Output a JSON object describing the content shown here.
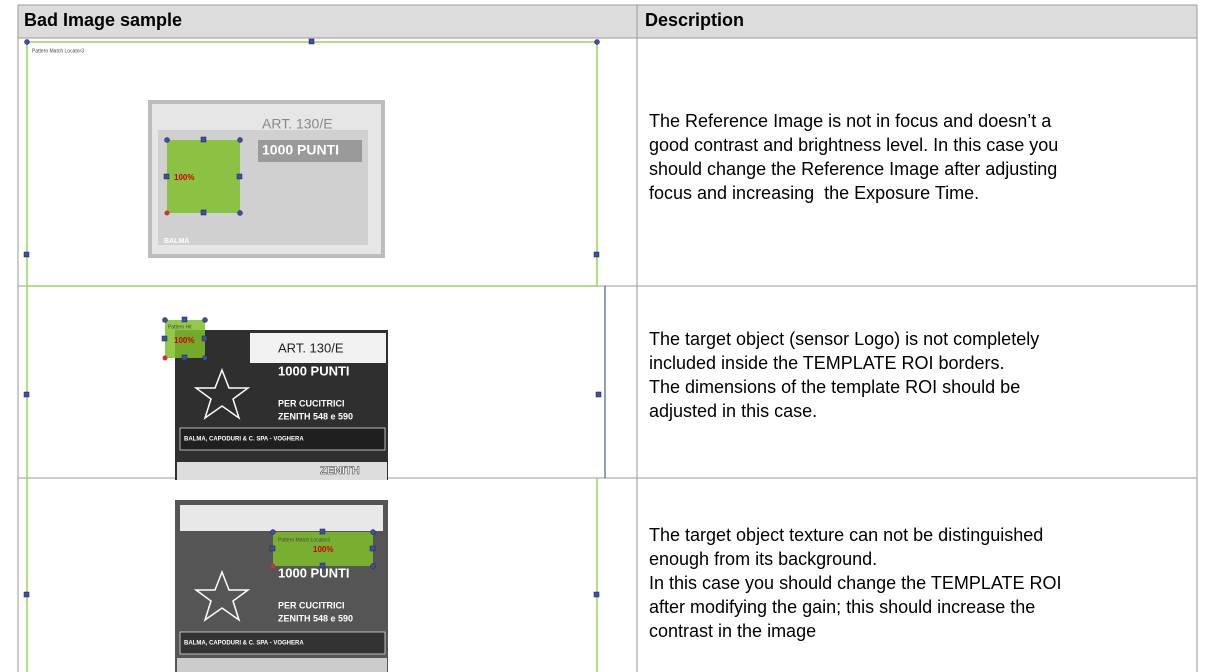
{
  "header": {
    "image": "Bad Image sample",
    "description": "Description"
  },
  "rows": [
    {
      "image": {
        "roi_label": "Pattern Match Locator3",
        "score": "100%",
        "box_art": "ART. 130/E",
        "box_count": "1000 PUNTI",
        "box_maker": "BALMA"
      },
      "description": [
        "The Reference Image is not in focus and doesn’t a",
        "good contrast and brightness level. In this case you",
        "should change the Reference Image after adjusting",
        "focus and increasing  the Exposure Time."
      ]
    },
    {
      "image": {
        "roi_label": "Pattern Hit",
        "score": "100%",
        "box_art": "ART. 130/E",
        "box_count": "1000 PUNTI",
        "box_use": "PER CUCITRICI",
        "box_model": "ZENITH 548 e 590",
        "box_maker": "BALMA, CAPODURI & C. SPA - VOGHERA",
        "box_brand": "ZENITH"
      },
      "description": [
        "The target object (sensor Logo) is not completely",
        "included inside the TEMPLATE ROI borders.",
        "The dimensions of the template ROI should be",
        "adjusted in this case."
      ]
    },
    {
      "image": {
        "roi_label": "Pattern Match Locator3",
        "score": "100%",
        "box_count": "1000 PUNTI",
        "box_use": "PER CUCITRICI",
        "box_model": "ZENITH 548 e 590",
        "box_maker": "BALMA, CAPODURI & C. SPA - VOGHERA"
      },
      "description": [
        "The target object texture can not be distinguished",
        "enough from its background.",
        "In this case you should change the TEMPLATE ROI",
        "after modifying the gain; this should increase the",
        "contrast in the image"
      ]
    }
  ]
}
